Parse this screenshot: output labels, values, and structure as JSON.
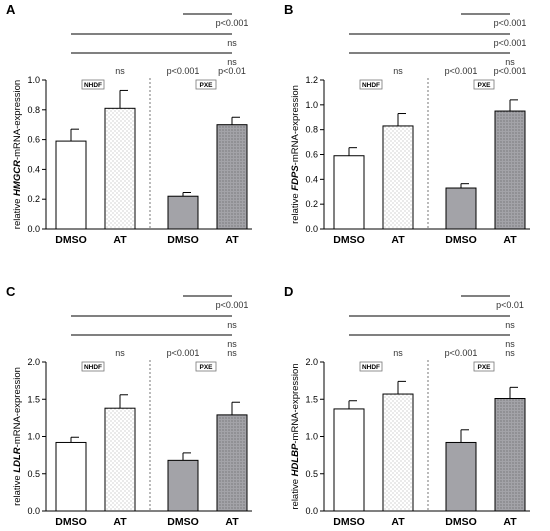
{
  "colors": {
    "dmso_nhdf": "#ffffff",
    "at_nhdf": "#ffffff",
    "dmso_pxe": "#a3a3a8",
    "at_pxe": "#a3a3a8",
    "outline": "#000000",
    "dots_light": "#9a9a9a",
    "dots_dark": "#4a4a4a"
  },
  "chart_data": [
    {
      "type": "bar",
      "panel": "A",
      "ylabel_prefix": "relative ",
      "ylabel_gene": "HMGCR",
      "ylabel_suffix": "-mRNA-expression",
      "categories": [
        "DMSO",
        "AT",
        "DMSO",
        "AT"
      ],
      "groups": [
        "NHDF",
        "PXE"
      ],
      "values": [
        0.59,
        0.81,
        0.22,
        0.7
      ],
      "errors": [
        0.08,
        0.12,
        0.025,
        0.05
      ],
      "ylim": [
        0,
        1.0
      ],
      "yticks": [
        "0.0",
        "0.2",
        "0.4",
        "0.6",
        "0.8",
        "1.0"
      ],
      "annotations": {
        "bar_nhdf_at": "ns",
        "bar_pxe_dmso": "p<0.001",
        "bar_pxe_at": "p<0.01",
        "bracket_1": "ns",
        "bracket_2": "ns",
        "bracket_3": "p<0.001"
      }
    },
    {
      "type": "bar",
      "panel": "B",
      "ylabel_prefix": "relative ",
      "ylabel_gene": "FDPS",
      "ylabel_suffix": "-mRNA-expression",
      "categories": [
        "DMSO",
        "AT",
        "DMSO",
        "AT"
      ],
      "groups": [
        "NHDF",
        "PXE"
      ],
      "values": [
        0.59,
        0.83,
        0.33,
        0.95
      ],
      "errors": [
        0.065,
        0.1,
        0.035,
        0.09
      ],
      "ylim": [
        0,
        1.2
      ],
      "yticks": [
        "0.0",
        "0.2",
        "0.4",
        "0.6",
        "0.8",
        "1.0",
        "1.2"
      ],
      "annotations": {
        "bar_nhdf_at": "ns",
        "bar_pxe_dmso": "p<0.001",
        "bar_pxe_at": "p<0.001",
        "bracket_1": "ns",
        "bracket_2": "p<0.001",
        "bracket_3": "p<0.001"
      }
    },
    {
      "type": "bar",
      "panel": "C",
      "ylabel_prefix": "relative ",
      "ylabel_gene": "LDLR",
      "ylabel_suffix": "-mRNA-expression",
      "categories": [
        "DMSO",
        "AT",
        "DMSO",
        "AT"
      ],
      "groups": [
        "NHDF",
        "PXE"
      ],
      "values": [
        0.92,
        1.38,
        0.68,
        1.29
      ],
      "errors": [
        0.07,
        0.18,
        0.1,
        0.17
      ],
      "ylim": [
        0,
        2.0
      ],
      "yticks": [
        "0.0",
        "0.5",
        "1.0",
        "1.5",
        "2.0"
      ],
      "annotations": {
        "bar_nhdf_at": "ns",
        "bar_pxe_dmso": "p<0.001",
        "bar_pxe_at": "ns",
        "bracket_1": "ns",
        "bracket_2": "ns",
        "bracket_3": "p<0.001"
      }
    },
    {
      "type": "bar",
      "panel": "D",
      "ylabel_prefix": "relative ",
      "ylabel_gene": "HDLBP",
      "ylabel_suffix": "-mRNA-expression",
      "categories": [
        "DMSO",
        "AT",
        "DMSO",
        "AT"
      ],
      "groups": [
        "NHDF",
        "PXE"
      ],
      "values": [
        1.37,
        1.57,
        0.92,
        1.51
      ],
      "errors": [
        0.11,
        0.17,
        0.17,
        0.15
      ],
      "ylim": [
        0,
        2.0
      ],
      "yticks": [
        "0.0",
        "0.5",
        "1.0",
        "1.5",
        "2.0"
      ],
      "annotations": {
        "bar_nhdf_at": "ns",
        "bar_pxe_dmso": "p<0.001",
        "bar_pxe_at": "ns",
        "bracket_1": "ns",
        "bracket_2": "ns",
        "bracket_3": "p<0.01"
      }
    }
  ]
}
